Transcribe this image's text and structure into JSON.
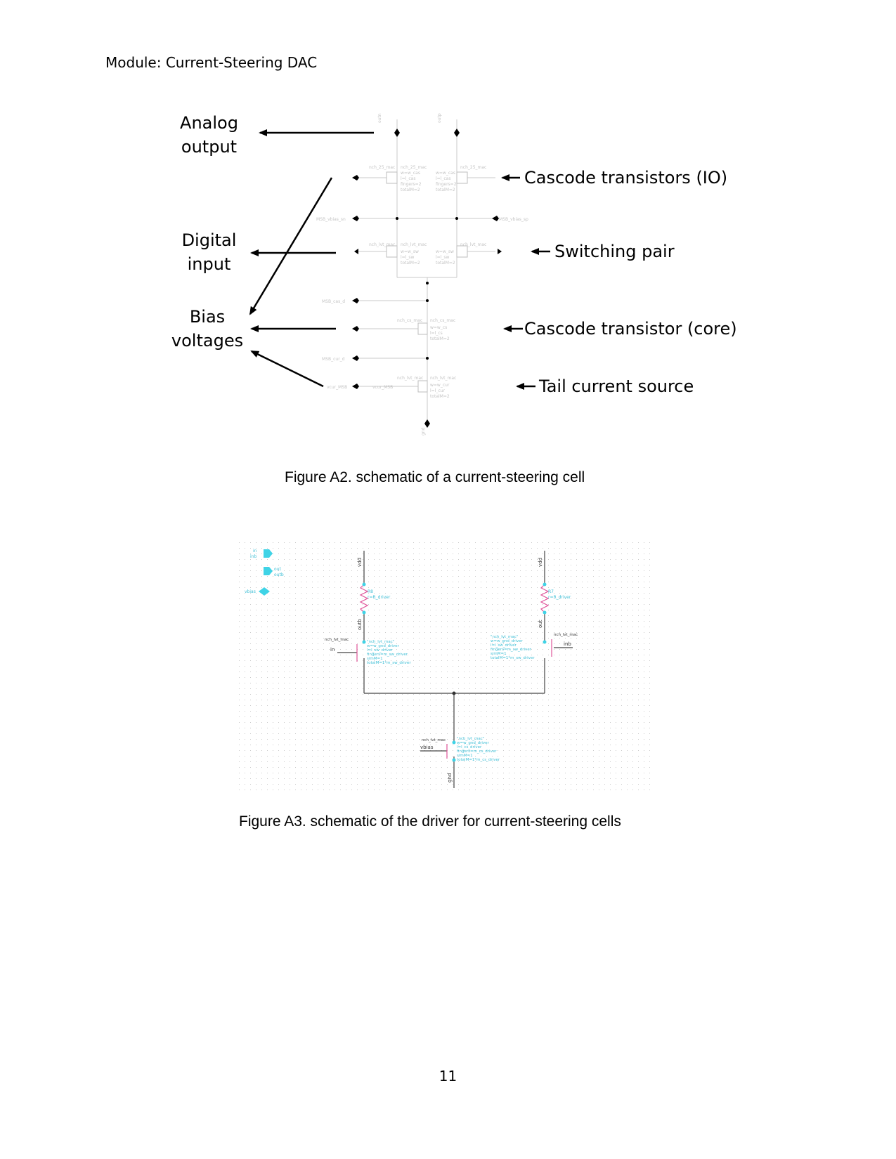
{
  "header": "Module: Current-Steering DAC",
  "figure_a2": {
    "left_labels": {
      "analog_output": [
        "Analog",
        "output"
      ],
      "digital_input": [
        "Digital",
        "input"
      ],
      "bias_voltages": [
        "Bias",
        "voltages"
      ]
    },
    "right_labels": {
      "cascode_io": "Cascode transistors (IO)",
      "switching_pair": "Switching pair",
      "cascode_core": "Cascode transistor (core)",
      "tail_source": "Tail current source"
    },
    "caption": "Figure A2. schematic of a current-steering cell"
  },
  "figure_a3": {
    "pins": [
      "in",
      "inb",
      "out",
      "outb",
      "vbias"
    ],
    "nets": {
      "vdd_left": "vdd",
      "vdd_right": "vdd",
      "outb": "outb",
      "out": "out",
      "in_left": "in",
      "inb_right": "inb",
      "vbias": "vbias",
      "gnd": "gnd"
    },
    "resistor_left": [
      "R8",
      "r=R_driver"
    ],
    "resistor_right": [
      "R7",
      "r=R_driver"
    ],
    "device_left": [
      "nch_lvt_mac",
      "\"nch_lvt_mac\"",
      "w=w_gnd_driver",
      "l=l_sw_driver",
      "fingers=m_sw_driver",
      "simM=1",
      "totalM=1*m_sw_driver"
    ],
    "device_right": [
      "nch_lvt_mac",
      "\"nch_lvt_mac\"",
      "w=w_gnd_driver",
      "l=l_sw_driver",
      "fingers=m_sw_driver",
      "simM=1",
      "totalM=1*m_sw_driver"
    ],
    "device_tail": [
      "nch_lvt_mac",
      "\"nch_lvt_mac\"",
      "w=w_gnd_driver",
      "l=l_cs_driver",
      "fingers=m_cs_driver",
      "simM=1",
      "totalM=1*m_cs_driver"
    ],
    "caption": "Figure A3. schematic of the driver for current-steering cells"
  },
  "page_number": "11"
}
